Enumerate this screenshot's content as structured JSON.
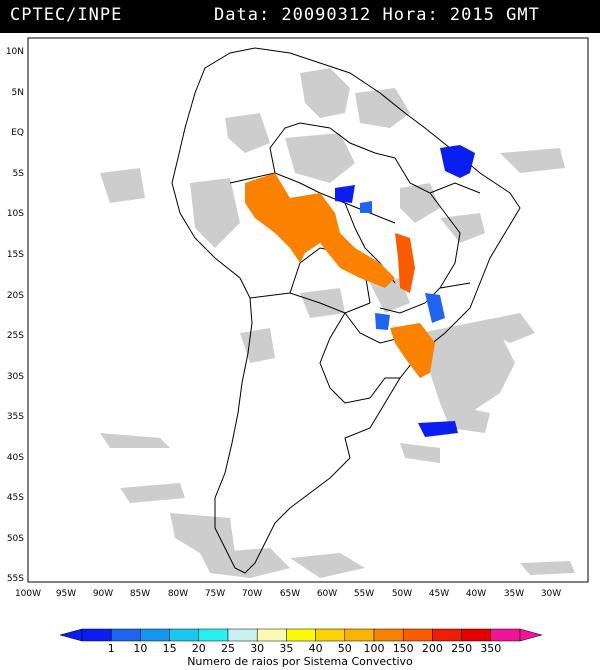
{
  "header": {
    "source": "CPTEC/INPE",
    "date_label": "Data: 20090312 Hora: 2015 GMT"
  },
  "map": {
    "lat_ticks": [
      "10N",
      "5N",
      "EQ",
      "5S",
      "10S",
      "15S",
      "20S",
      "25S",
      "30S",
      "35S",
      "40S",
      "45S",
      "50S",
      "55S"
    ],
    "lon_ticks": [
      "100W",
      "95W",
      "90W",
      "85W",
      "80W",
      "75W",
      "70W",
      "65W",
      "60W",
      "55W",
      "50W",
      "45W",
      "40W",
      "35W",
      "30W"
    ]
  },
  "legend": {
    "title": "Numero de raios por Sistema Convectivo",
    "labels": [
      "1",
      "10",
      "15",
      "20",
      "25",
      "30",
      "35",
      "40",
      "50",
      "100",
      "150",
      "200",
      "250",
      "350"
    ],
    "colors": [
      "#0a1ef0",
      "#1e64f0",
      "#1496f0",
      "#19c8f0",
      "#28f0f0",
      "#c8f0f0",
      "#fafab4",
      "#fafa00",
      "#fad200",
      "#fab400",
      "#fa8200",
      "#fa5a00",
      "#f01e00",
      "#e60000",
      "#f01496"
    ]
  }
}
